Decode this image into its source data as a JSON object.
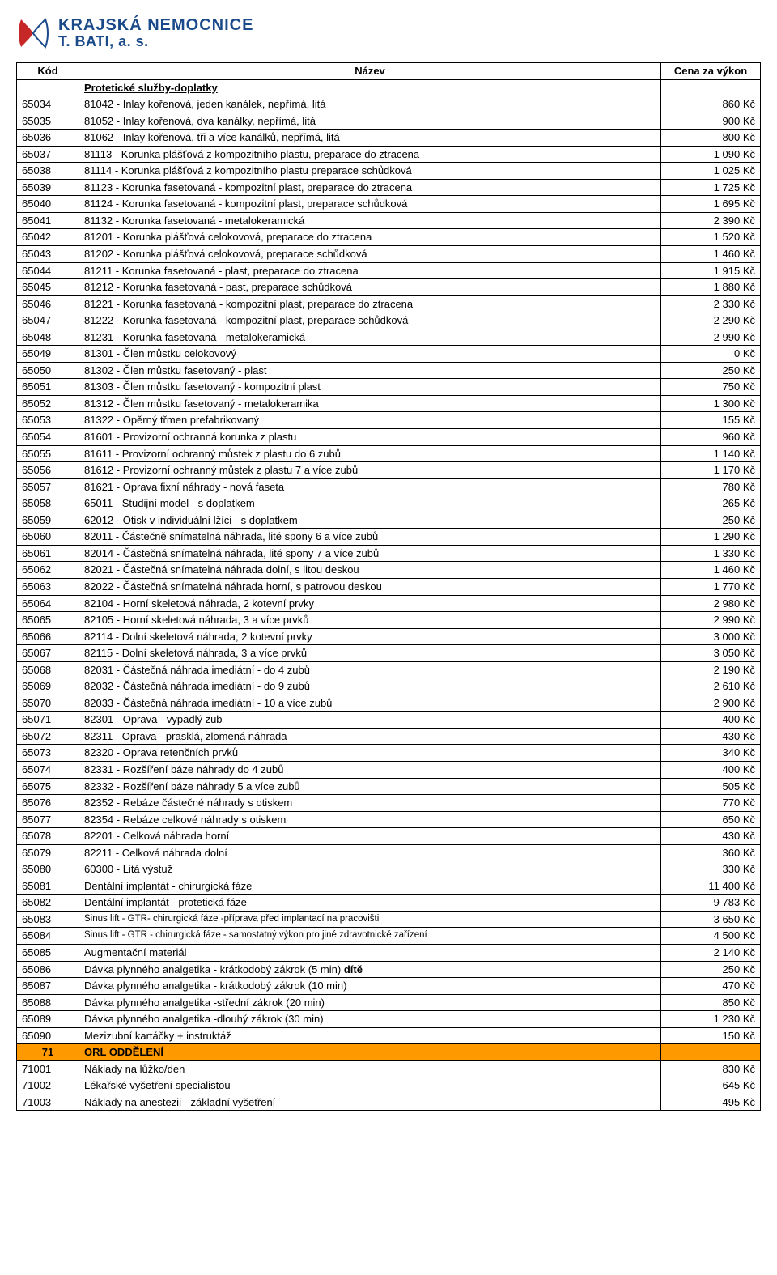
{
  "logo": {
    "line1": "KRAJSKÁ NEMOCNICE",
    "line2": "T. BATI, a. s.",
    "color": "#1a4a8a",
    "mark_fill": "#c62828",
    "mark_stroke": "#1a4a8a"
  },
  "table": {
    "headers": {
      "code": "Kód",
      "name": "Název",
      "price": "Cena za výkon"
    },
    "section_title": "Protetické služby-doplatky",
    "currency": "Kč",
    "rows": [
      {
        "code": "65034",
        "name": "81042 - Inlay kořenová, jeden kanálek, nepřímá, litá",
        "price": "860 Kč"
      },
      {
        "code": "65035",
        "name": "81052 - Inlay kořenová, dva kanálky, nepřímá, litá",
        "price": "900 Kč"
      },
      {
        "code": "65036",
        "name": "81062 - Inlay kořenová, tři a více kanálků, nepřímá, litá",
        "price": "800 Kč"
      },
      {
        "code": "65037",
        "name": "81113 - Korunka plášťová z kompozitního plastu, preparace do ztracena",
        "price": "1 090 Kč"
      },
      {
        "code": "65038",
        "name": "81114 - Korunka plášťová z kompozitního plastu preparace schůdková",
        "price": "1 025 Kč"
      },
      {
        "code": "65039",
        "name": "81123 - Korunka fasetovaná - kompozitní plast, preparace do ztracena",
        "price": "1 725 Kč"
      },
      {
        "code": "65040",
        "name": "81124 - Korunka fasetovaná - kompozitní plast, preparace schůdková",
        "price": "1 695 Kč"
      },
      {
        "code": "65041",
        "name": "81132 - Korunka fasetovaná - metalokeramická",
        "price": "2 390 Kč"
      },
      {
        "code": "65042",
        "name": "81201 - Korunka plášťová celokovová, preparace do ztracena",
        "price": "1 520 Kč"
      },
      {
        "code": "65043",
        "name": "81202 - Korunka plášťová celokovová, preparace schůdková",
        "price": "1 460 Kč"
      },
      {
        "code": "65044",
        "name": "81211 - Korunka fasetovaná - plast, preparace do ztracena",
        "price": "1 915 Kč"
      },
      {
        "code": "65045",
        "name": "81212 - Korunka fasetovaná - past, preparace schůdková",
        "price": "1 880 Kč"
      },
      {
        "code": "65046",
        "name": "81221 - Korunka fasetovaná - kompozitní plast, preparace do ztracena",
        "price": "2 330 Kč"
      },
      {
        "code": "65047",
        "name": "81222 - Korunka fasetovaná - kompozitní plast, preparace schůdková",
        "price": "2 290 Kč"
      },
      {
        "code": "65048",
        "name": "81231 - Korunka fasetovaná - metalokeramická",
        "price": "2 990 Kč"
      },
      {
        "code": "65049",
        "name": "81301 - Člen můstku celokovový",
        "price": "0 Kč"
      },
      {
        "code": "65050",
        "name": "81302 - Člen můstku fasetovaný - plast",
        "price": "250 Kč"
      },
      {
        "code": "65051",
        "name": "81303 - Člen můstku fasetovaný - kompozitní plast",
        "price": "750 Kč"
      },
      {
        "code": "65052",
        "name": "81312 - Člen můstku fasetovaný - metalokeramika",
        "price": "1 300 Kč"
      },
      {
        "code": "65053",
        "name": "81322 - Opěrný třmen prefabrikovaný",
        "price": "155 Kč"
      },
      {
        "code": "65054",
        "name": "81601 - Provizorní ochranná korunka z plastu",
        "price": "960 Kč"
      },
      {
        "code": "65055",
        "name": "81611 - Provizorní ochranný můstek z plastu do  6 zubů",
        "price": "1 140 Kč"
      },
      {
        "code": "65056",
        "name": "81612 - Provizorní ochranný můstek z plastu 7 a více zubů",
        "price": "1 170 Kč"
      },
      {
        "code": "65057",
        "name": "81621 - Oprava fixní náhrady - nová faseta",
        "price": "780 Kč"
      },
      {
        "code": "65058",
        "name": "65011 - Studijní model - s doplatkem",
        "price": "265 Kč"
      },
      {
        "code": "65059",
        "name": "62012 - Otisk v individuální lžíci - s doplatkem",
        "price": "250 Kč"
      },
      {
        "code": "65060",
        "name": "82011 - Částečně snímatelná náhrada, lité spony 6 a více zubů",
        "price": "1 290 Kč"
      },
      {
        "code": "65061",
        "name": "82014 - Částečná snímatelná náhrada, lité spony 7 a více zubů",
        "price": "1 330 Kč"
      },
      {
        "code": "65062",
        "name": "82021 - Částečná snímatelná náhrada dolní, s litou deskou",
        "price": "1 460 Kč"
      },
      {
        "code": "65063",
        "name": "82022 - Částečná snímatelná náhrada horní,  s patrovou deskou",
        "price": "1 770 Kč"
      },
      {
        "code": "65064",
        "name": "82104 - Horní skeletová náhrada, 2 kotevní prvky",
        "price": "2 980 Kč"
      },
      {
        "code": "65065",
        "name": "82105 - Horní skeletová náhrada, 3 a více prvků",
        "price": "2 990 Kč"
      },
      {
        "code": "65066",
        "name": "82114 - Dolní skeletová náhrada, 2 kotevní prvky",
        "price": "3 000 Kč"
      },
      {
        "code": "65067",
        "name": "82115 - Dolní skeletová náhrada, 3 a více prvků",
        "price": "3 050 Kč"
      },
      {
        "code": "65068",
        "name": "82031 - Částečná náhrada imediátní - do 4 zubů",
        "price": "2 190 Kč"
      },
      {
        "code": "65069",
        "name": "82032 - Částečná náhrada imediátní - do 9 zubů",
        "price": "2 610 Kč"
      },
      {
        "code": "65070",
        "name": "82033 - Částečná náhrada imediátní - 10 a více zubů",
        "price": "2 900 Kč"
      },
      {
        "code": "65071",
        "name": "82301 - Oprava - vypadlý zub",
        "price": "400 Kč"
      },
      {
        "code": "65072",
        "name": "82311 - Oprava - prasklá, zlomená náhrada",
        "price": "430 Kč"
      },
      {
        "code": "65073",
        "name": "82320 - Oprava retenčních prvků",
        "price": "340 Kč"
      },
      {
        "code": "65074",
        "name": "82331 - Rozšíření báze náhrady do 4 zubů",
        "price": "400 Kč"
      },
      {
        "code": "65075",
        "name": "82332 - Rozšíření báze náhrady 5 a více zubů",
        "price": "505 Kč"
      },
      {
        "code": "65076",
        "name": "82352 - Rebáze částečné náhrady s otiskem",
        "price": "770 Kč"
      },
      {
        "code": "65077",
        "name": "82354 - Rebáze celkové náhrady s otiskem",
        "price": "650 Kč"
      },
      {
        "code": "65078",
        "name": "82201 - Celková náhrada horní",
        "price": "430 Kč"
      },
      {
        "code": "65079",
        "name": "82211 - Celková náhrada dolní",
        "price": "360 Kč"
      },
      {
        "code": "65080",
        "name": "60300 - Litá výstuž",
        "price": "330 Kč"
      },
      {
        "code": "65081",
        "name": "Dentální implantát - chirurgická fáze",
        "price": "11 400 Kč"
      },
      {
        "code": "65082",
        "name": "Dentální implantát - protetická fáze",
        "price": "9 783 Kč"
      },
      {
        "code": "65083",
        "name": "Sinus lift - GTR- chirurgická fáze -příprava před implantací na pracovišti",
        "price": "3 650 Kč",
        "small": true
      },
      {
        "code": "65084",
        "name": "Sinus lift - GTR - chirurgická fáze - samostatný výkon pro jiné zdravotnické zařízení",
        "price": "4 500 Kč",
        "small": true
      },
      {
        "code": "65085",
        "name": "Augmentační materiál",
        "price": "2 140 Kč"
      },
      {
        "code": "65086",
        "name": "Dávka plynného analgetika - krátkodobý zákrok  (5 min)",
        "price": "250 Kč",
        "bold_suffix": "dítě"
      },
      {
        "code": "65087",
        "name": "Dávka plynného analgetika - krátkodobý zákrok (10 min)",
        "price": "470 Kč"
      },
      {
        "code": "65088",
        "name": "Dávka plynného analgetika -střední zákrok           (20 min)",
        "price": "850 Kč"
      },
      {
        "code": "65089",
        "name": "Dávka plynného analgetika -dlouhý zákrok            (30 min)",
        "price": "1 230 Kč"
      },
      {
        "code": "65090",
        "name": "Mezizubní kartáčky + instruktáž",
        "price": "150 Kč"
      }
    ],
    "orl": {
      "code": "71",
      "name": "ORL  ODDĚLENÍ",
      "bg": "#ff9900"
    },
    "rows2": [
      {
        "code": "71001",
        "name": "Náklady na lůžko/den",
        "price": "830 Kč"
      },
      {
        "code": "71002",
        "name": "Lékařské vyšetření specialistou",
        "price": "645 Kč"
      },
      {
        "code": "71003",
        "name": "Náklady na anestezii - základní vyšetření",
        "price": "495 Kč"
      }
    ]
  }
}
